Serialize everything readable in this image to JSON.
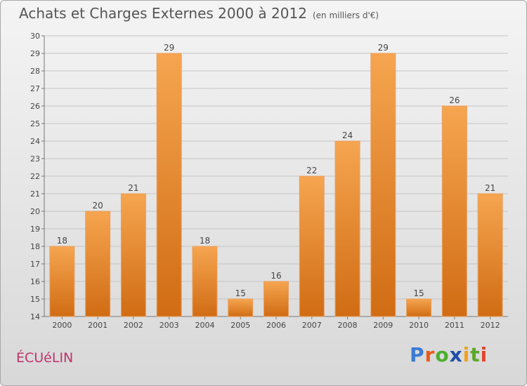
{
  "header": {
    "title": "Achats et Charges Externes 2000 à 2012",
    "subtitle": "(en milliers d'€)"
  },
  "footer": {
    "place": "ÉCUéLIN",
    "logo": [
      "P",
      "r",
      "o",
      "x",
      "i",
      "t",
      "i"
    ]
  },
  "colors": {
    "bar_top": "#f6a550",
    "bar_bottom": "#d06c14",
    "logo": [
      "#3a7bd5",
      "#e85a1b",
      "#4caf2f",
      "#1e4fa8",
      "#f0a11a",
      "#5aa82a",
      "#e0452b"
    ]
  },
  "chart_data": {
    "type": "bar",
    "title": "Achats et Charges Externes 2000 à 2012",
    "subtitle": "(en milliers d'€)",
    "categories": [
      "2000",
      "2001",
      "2002",
      "2003",
      "2004",
      "2005",
      "2006",
      "2007",
      "2008",
      "2009",
      "2010",
      "2011",
      "2012"
    ],
    "values": [
      18,
      20,
      21,
      29,
      18,
      15,
      16,
      22,
      24,
      29,
      15,
      26,
      21
    ],
    "ylim": [
      14,
      30
    ],
    "yticks": [
      "14",
      "15",
      "16",
      "17",
      "18",
      "19",
      "20",
      "21",
      "22",
      "23",
      "24",
      "25",
      "26",
      "27",
      "28",
      "29",
      "30"
    ],
    "grid": true,
    "xlabel": "",
    "ylabel": ""
  }
}
